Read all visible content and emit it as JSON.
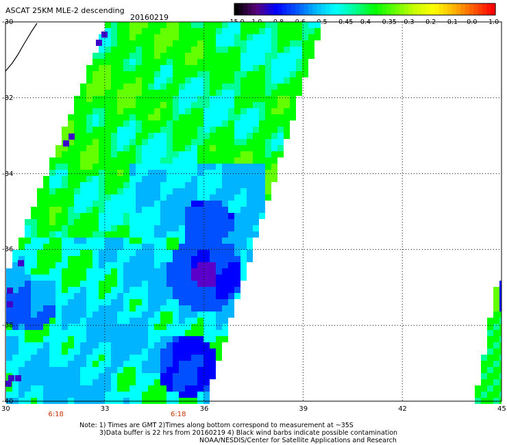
{
  "header": {
    "title": "ASCAT 25KM MLE-2 descending",
    "date": "20160219"
  },
  "colorbar": {
    "labels": [
      "-15.0",
      "-1.0",
      "-0.8",
      "-0.6",
      "-0.5",
      "-0.45",
      "-0.4",
      "-0.35",
      "-0.3",
      "-0.2",
      "-0.1",
      "0.0",
      "1.0"
    ],
    "colors": [
      "#000000",
      "#5a0078",
      "#0000ff",
      "#0050ff",
      "#00b4ff",
      "#00ffff",
      "#00ff96",
      "#00ff00",
      "#64ff00",
      "#c8ff00",
      "#ffff00",
      "#ffb400",
      "#ff5a00",
      "#ff0000"
    ]
  },
  "map": {
    "lat_labels": [
      "-30",
      "-32",
      "-34",
      "-36",
      "-38",
      "-40"
    ],
    "lon_labels": [
      "30",
      "33",
      "36",
      "39",
      "42",
      "45"
    ],
    "lat_range": [
      -40,
      -30
    ],
    "lon_range": [
      30,
      45
    ],
    "time_labels": [
      {
        "text": "6:18",
        "lon": 31.5
      },
      {
        "text": "6:18",
        "lon": 35.2
      }
    ]
  },
  "notes": {
    "line1": "Note: 1) Times are GMT 2)Times along bottom correspond to measurement at ~35S",
    "line2": "3)Data buffer is 22 hrs from 20160219 4) Black wind barbs indicate possible contamination",
    "line3": "NOAA/NESDIS/Center for Satellite Applications and Research"
  }
}
